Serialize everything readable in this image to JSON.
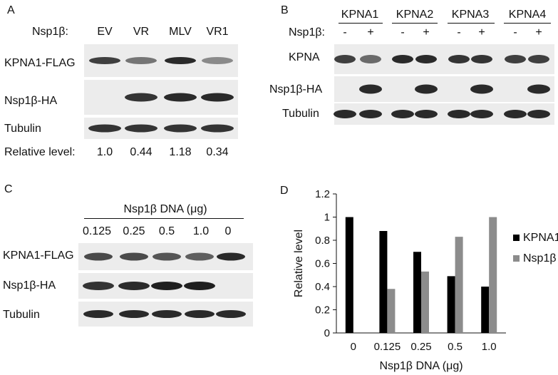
{
  "panels": {
    "A": {
      "letter": "A",
      "header_label": "Nsp1β:",
      "lanes": [
        "EV",
        "VR",
        "MLV",
        "VR1"
      ],
      "rows": [
        "KPNA1-FLAG",
        "Nsp1β-HA",
        "Tubulin"
      ],
      "relative_label": "Relative level:",
      "relative_values": [
        "1.0",
        "0.44",
        "1.18",
        "0.34"
      ],
      "band_intensity": {
        "KPNA1-FLAG": [
          0.8,
          0.55,
          0.9,
          0.45
        ],
        "Nsp1β-HA": [
          0.0,
          0.85,
          0.9,
          0.9
        ],
        "Tubulin": [
          0.85,
          0.85,
          0.85,
          0.85
        ]
      }
    },
    "B": {
      "letter": "B",
      "groups": [
        "KPNA1",
        "KPNA2",
        "KPNA3",
        "KPNA4"
      ],
      "header_label": "Nsp1β:",
      "signs": [
        "-",
        "+",
        "-",
        "+",
        "-",
        "+",
        "-",
        "+"
      ],
      "rows": [
        "KPNA",
        "Nsp1β-HA",
        "Tubulin"
      ],
      "band_intensity": {
        "KPNA": [
          0.8,
          0.6,
          0.9,
          0.9,
          0.85,
          0.85,
          0.8,
          0.8
        ],
        "Nsp1β-HA": [
          0.0,
          0.9,
          0.0,
          0.9,
          0.0,
          0.9,
          0.0,
          0.9
        ],
        "Tubulin": [
          0.9,
          0.9,
          0.9,
          0.9,
          0.9,
          0.9,
          0.9,
          0.9
        ]
      }
    },
    "C": {
      "letter": "C",
      "header_label": "Nsp1β DNA (μg)",
      "lanes": [
        "0.125",
        "0.25",
        "0.5",
        "1.0",
        "0"
      ],
      "rows": [
        "KPNA1-FLAG",
        "Nsp1β-HA",
        "Tubulin"
      ],
      "band_intensity": {
        "KPNA1-FLAG": [
          0.75,
          0.75,
          0.7,
          0.65,
          0.9
        ],
        "Nsp1β-HA": [
          0.85,
          0.9,
          0.95,
          0.95,
          0.0
        ],
        "Tubulin": [
          0.9,
          0.9,
          0.9,
          0.9,
          0.9
        ]
      }
    },
    "D": {
      "letter": "D"
    }
  },
  "chart_data": {
    "type": "bar",
    "categories": [
      "0",
      "0.125",
      "0.25",
      "0.5",
      "1.0"
    ],
    "series": [
      {
        "name": "KPNA1",
        "color": "#000000",
        "values": [
          1.0,
          0.88,
          0.7,
          0.49,
          0.4
        ]
      },
      {
        "name": "Nsp1β",
        "color": "#8c8c8c",
        "values": [
          0.0,
          0.38,
          0.53,
          0.83,
          1.0
        ]
      }
    ],
    "xlabel": "Nsp1β  DNA (μg)",
    "ylabel": "Relative level",
    "ylim": [
      0,
      1.2
    ],
    "yticks": [
      "0",
      "0.2",
      "0.4",
      "0.6",
      "0.8",
      "1",
      "1.2"
    ],
    "grid": false,
    "legend": "right"
  }
}
